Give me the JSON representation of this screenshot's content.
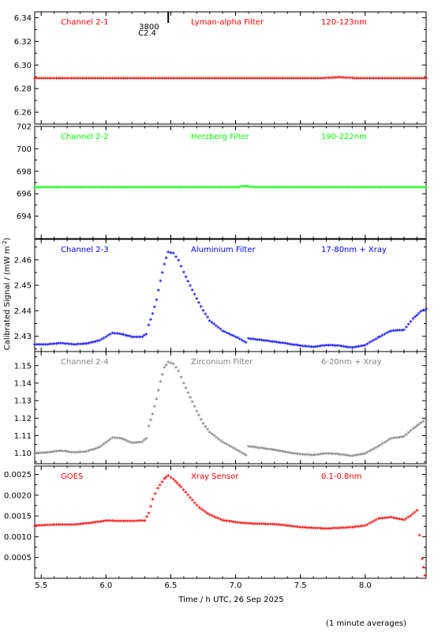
{
  "chart_data": {
    "type": "scatter",
    "x_axis": {
      "label": "Time / h UTC, 26 Sep 2025",
      "range": [
        5.45,
        8.47
      ],
      "ticks": [
        5.5,
        6.0,
        6.5,
        7.0,
        7.5,
        8.0
      ],
      "tick_labels": [
        "5.5",
        "6.0",
        "6.5",
        "7.0",
        "7.5",
        "8.0"
      ]
    },
    "y_axis_label": "Calibrated Signal / (mW m^-2)",
    "footnote": "(1 minute averages)",
    "annotations": [
      "3800",
      "C2.4"
    ],
    "annotation_x": 6.48,
    "panels": [
      {
        "name": "Channel 2-1",
        "filter": "Lyman-alpha Filter",
        "band": "120-123nm",
        "color": "#ff0000",
        "ylim": [
          6.25,
          6.345
        ],
        "yticks": [
          6.26,
          6.28,
          6.3,
          6.32,
          6.34
        ],
        "ytick_labels": [
          "6.26",
          "6.28",
          "6.30",
          "6.32",
          "6.34"
        ],
        "points": [
          [
            5.45,
            6.288
          ],
          [
            5.6,
            6.288
          ],
          [
            5.8,
            6.288
          ],
          [
            6.0,
            6.288
          ],
          [
            6.2,
            6.288
          ],
          [
            6.4,
            6.288
          ],
          [
            6.6,
            6.288
          ],
          [
            6.8,
            6.288
          ],
          [
            7.0,
            6.288
          ],
          [
            7.2,
            6.288
          ],
          [
            7.4,
            6.288
          ],
          [
            7.6,
            6.288
          ],
          [
            7.75,
            6.2885
          ],
          [
            7.8,
            6.289
          ],
          [
            7.85,
            6.2885
          ],
          [
            8.0,
            6.288
          ],
          [
            8.2,
            6.288
          ],
          [
            8.47,
            6.288
          ]
        ]
      },
      {
        "name": "Channel 2-2",
        "filter": "Herzberg Filter",
        "band": "190-222nm",
        "color": "#00ff00",
        "ylim": [
          692.0,
          702.0
        ],
        "yticks": [
          694,
          696,
          698,
          700,
          702
        ],
        "ytick_labels": [
          "694",
          "696",
          "698",
          "700",
          "702"
        ],
        "points": [
          [
            5.45,
            696.5
          ],
          [
            5.8,
            696.5
          ],
          [
            6.2,
            696.5
          ],
          [
            6.6,
            696.5
          ],
          [
            7.0,
            696.5
          ],
          [
            7.08,
            696.6
          ],
          [
            7.15,
            696.5
          ],
          [
            7.5,
            696.5
          ],
          [
            7.9,
            696.5
          ],
          [
            8.2,
            696.5
          ],
          [
            8.47,
            696.5
          ]
        ]
      },
      {
        "name": "Channel 2-3",
        "filter": "Aluminium Filter",
        "band": "17-80nm + Xray",
        "color": "#0000ff",
        "ylim": [
          2.424,
          2.468
        ],
        "yticks": [
          2.43,
          2.44,
          2.45,
          2.46
        ],
        "ytick_labels": [
          "2.43",
          "2.44",
          "2.45",
          "2.46"
        ],
        "points": [
          [
            5.45,
            2.4265
          ],
          [
            5.55,
            2.4265
          ],
          [
            5.65,
            2.427
          ],
          [
            5.75,
            2.4265
          ],
          [
            5.85,
            2.4268
          ],
          [
            5.95,
            2.428
          ],
          [
            6.05,
            2.431
          ],
          [
            6.12,
            2.4305
          ],
          [
            6.2,
            2.4295
          ],
          [
            6.28,
            2.4295
          ],
          [
            6.31,
            2.4305
          ],
          [
            6.33,
            2.434
          ],
          [
            6.36,
            2.4385
          ],
          [
            6.39,
            2.444
          ],
          [
            6.42,
            2.4515
          ],
          [
            6.45,
            2.458
          ],
          [
            6.48,
            2.4628
          ],
          [
            6.52,
            2.4622
          ],
          [
            6.56,
            2.4595
          ],
          [
            6.6,
            2.4548
          ],
          [
            6.65,
            2.4495
          ],
          [
            6.7,
            2.4445
          ],
          [
            6.75,
            2.4398
          ],
          [
            6.8,
            2.4358
          ],
          [
            6.9,
            2.4318
          ],
          [
            7.0,
            2.4295
          ],
          [
            7.08,
            2.4272
          ],
          [
            7.1,
            2.4288
          ],
          [
            7.2,
            2.4282
          ],
          [
            7.3,
            2.4275
          ],
          [
            7.4,
            2.4268
          ],
          [
            7.5,
            2.426
          ],
          [
            7.6,
            2.4255
          ],
          [
            7.7,
            2.4262
          ],
          [
            7.8,
            2.426
          ],
          [
            7.9,
            2.4252
          ],
          [
            8.0,
            2.4262
          ],
          [
            8.1,
            2.4292
          ],
          [
            8.2,
            2.4318
          ],
          [
            8.3,
            2.4322
          ],
          [
            8.37,
            2.4365
          ],
          [
            8.43,
            2.4395
          ],
          [
            8.47,
            2.4405
          ]
        ]
      },
      {
        "name": "Channel 2-4",
        "filter": "Zirconium Filter",
        "band": "6-20nm + Xray",
        "color": "#808080",
        "ylim": [
          1.094,
          1.158
        ],
        "yticks": [
          1.1,
          1.11,
          1.12,
          1.13,
          1.14,
          1.15
        ],
        "ytick_labels": [
          "1.10",
          "1.11",
          "1.12",
          "1.13",
          "1.14",
          "1.15"
        ],
        "points": [
          [
            5.45,
            1.0995
          ],
          [
            5.55,
            1.1
          ],
          [
            5.65,
            1.101
          ],
          [
            5.75,
            1.1
          ],
          [
            5.85,
            1.1005
          ],
          [
            5.95,
            1.103
          ],
          [
            6.05,
            1.1085
          ],
          [
            6.12,
            1.108
          ],
          [
            6.2,
            1.1055
          ],
          [
            6.28,
            1.106
          ],
          [
            6.31,
            1.108
          ],
          [
            6.33,
            1.115
          ],
          [
            6.36,
            1.122
          ],
          [
            6.39,
            1.1305
          ],
          [
            6.42,
            1.1405
          ],
          [
            6.45,
            1.1485
          ],
          [
            6.48,
            1.1515
          ],
          [
            6.52,
            1.1505
          ],
          [
            6.56,
            1.1465
          ],
          [
            6.6,
            1.1395
          ],
          [
            6.65,
            1.1315
          ],
          [
            6.7,
            1.1235
          ],
          [
            6.75,
            1.1165
          ],
          [
            6.8,
            1.1115
          ],
          [
            6.9,
            1.106
          ],
          [
            7.0,
            1.102
          ],
          [
            7.08,
            1.0985
          ],
          [
            7.1,
            1.1035
          ],
          [
            7.2,
            1.1025
          ],
          [
            7.3,
            1.1015
          ],
          [
            7.4,
            1.1
          ],
          [
            7.5,
            1.099
          ],
          [
            7.6,
            1.0985
          ],
          [
            7.7,
            1.0995
          ],
          [
            7.8,
            1.099
          ],
          [
            7.9,
            1.098
          ],
          [
            8.0,
            1.0995
          ],
          [
            8.1,
            1.1035
          ],
          [
            8.2,
            1.108
          ],
          [
            8.3,
            1.109
          ],
          [
            8.37,
            1.1135
          ],
          [
            8.43,
            1.117
          ],
          [
            8.47,
            1.1185
          ]
        ]
      },
      {
        "name": "GOES",
        "filter": "Xray Sensor",
        "band": "0.1-0.8nm",
        "color": "#ff0000",
        "ylim": [
          0.0,
          0.0027
        ],
        "yticks": [
          0.0005,
          0.001,
          0.0015,
          0.002,
          0.0025
        ],
        "ytick_labels": [
          "0.0005",
          "0.0010",
          "0.0015",
          "0.0020",
          "0.0025"
        ],
        "points": [
          [
            5.45,
            0.00125
          ],
          [
            5.6,
            0.00127
          ],
          [
            5.75,
            0.00127
          ],
          [
            5.9,
            0.00132
          ],
          [
            6.0,
            0.00137
          ],
          [
            6.1,
            0.00136
          ],
          [
            6.2,
            0.00136
          ],
          [
            6.3,
            0.00137
          ],
          [
            6.33,
            0.00155
          ],
          [
            6.36,
            0.00188
          ],
          [
            6.4,
            0.00215
          ],
          [
            6.45,
            0.00238
          ],
          [
            6.48,
            0.00245
          ],
          [
            6.52,
            0.00237
          ],
          [
            6.58,
            0.00218
          ],
          [
            6.65,
            0.00192
          ],
          [
            6.72,
            0.00168
          ],
          [
            6.8,
            0.00151
          ],
          [
            6.9,
            0.00138
          ],
          [
            7.0,
            0.00133
          ],
          [
            7.1,
            0.0013
          ],
          [
            7.2,
            0.00129
          ],
          [
            7.3,
            0.00128
          ],
          [
            7.4,
            0.00125
          ],
          [
            7.5,
            0.00121
          ],
          [
            7.6,
            0.00119
          ],
          [
            7.7,
            0.00118
          ],
          [
            7.8,
            0.00119
          ],
          [
            7.9,
            0.00121
          ],
          [
            8.0,
            0.00125
          ],
          [
            8.1,
            0.00142
          ],
          [
            8.2,
            0.00145
          ],
          [
            8.3,
            0.00139
          ],
          [
            8.35,
            0.00148
          ],
          [
            8.4,
            0.00162
          ],
          [
            8.42,
            0.00102
          ],
          [
            8.44,
            0.00045
          ],
          [
            8.45,
            0.00025
          ],
          [
            8.46,
            5e-05
          ]
        ]
      }
    ]
  }
}
